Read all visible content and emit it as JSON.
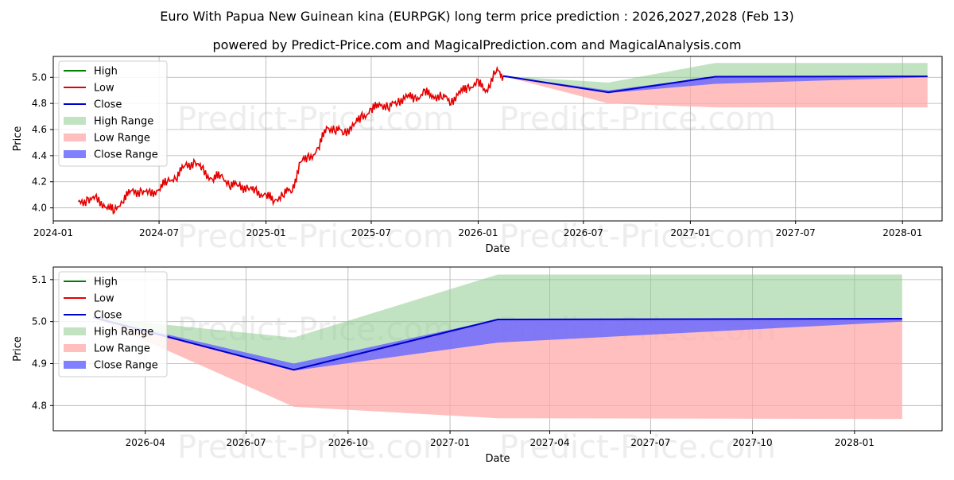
{
  "title": "Euro With Papua New Guinean kina (EURPGK) long term price prediction : 2026,2027,2028 (Feb 13)",
  "subtitle": "powered by Predict-Price.com and MagicalPrediction.com and MagicalAnalysis.com",
  "watermark": "Predict-Price.com",
  "colors": {
    "high": "#008000",
    "low": "#e60000",
    "close": "#0000cc",
    "high_range": "#8fcc8f",
    "low_range": "#ffaaaa",
    "close_range": "#6b6bff",
    "grid": "#b0b0b0"
  },
  "legend_labels": [
    "High",
    "Low",
    "Close",
    "High Range",
    "Low Range",
    "Close Range"
  ],
  "chart_data": [
    {
      "type": "line",
      "name": "history-and-forecast",
      "xlabel": "Date",
      "ylabel": "Price",
      "grid": true,
      "legend": "top-left",
      "xlim": [
        "2024-01-01",
        "2028-03-09"
      ],
      "ylim": [
        3.9,
        5.16
      ],
      "xticks": [
        {
          "date": "2024-01-01",
          "label": "2024-01"
        },
        {
          "date": "2024-07-01",
          "label": "2024-07"
        },
        {
          "date": "2025-01-01",
          "label": "2025-01"
        },
        {
          "date": "2025-07-01",
          "label": "2025-07"
        },
        {
          "date": "2026-01-01",
          "label": "2026-01"
        },
        {
          "date": "2026-07-01",
          "label": "2026-07"
        },
        {
          "date": "2027-01-01",
          "label": "2027-01"
        },
        {
          "date": "2027-07-01",
          "label": "2027-07"
        },
        {
          "date": "2028-01-01",
          "label": "2028-01"
        }
      ],
      "yticks": [
        4.0,
        4.2,
        4.4,
        4.6,
        4.8,
        5.0
      ],
      "history_low": {
        "x": [
          "2024-02-13",
          "2024-03-01",
          "2024-03-15",
          "2024-04-01",
          "2024-04-15",
          "2024-05-01",
          "2024-05-15",
          "2024-06-01",
          "2024-06-15",
          "2024-07-01",
          "2024-07-15",
          "2024-08-01",
          "2024-08-15",
          "2024-09-01",
          "2024-09-15",
          "2024-10-01",
          "2024-10-15",
          "2024-11-01",
          "2024-11-15",
          "2024-12-01",
          "2024-12-15",
          "2025-01-01",
          "2025-01-15",
          "2025-02-01",
          "2025-02-15",
          "2025-03-01",
          "2025-03-15",
          "2025-04-01",
          "2025-04-15",
          "2025-05-01",
          "2025-05-15",
          "2025-06-01",
          "2025-06-15",
          "2025-07-01",
          "2025-07-15",
          "2025-08-01",
          "2025-08-15",
          "2025-09-01",
          "2025-09-15",
          "2025-10-01",
          "2025-10-15",
          "2025-11-01",
          "2025-11-15",
          "2025-12-01",
          "2025-12-15",
          "2026-01-01",
          "2026-01-15",
          "2026-02-01",
          "2026-02-13"
        ],
        "values": [
          4.03,
          4.07,
          4.06,
          4.02,
          3.97,
          4.08,
          4.12,
          4.13,
          4.1,
          4.15,
          4.2,
          4.25,
          4.32,
          4.35,
          4.28,
          4.22,
          4.25,
          4.18,
          4.17,
          4.15,
          4.12,
          4.1,
          4.05,
          4.12,
          4.13,
          4.35,
          4.38,
          4.45,
          4.62,
          4.6,
          4.58,
          4.63,
          4.7,
          4.74,
          4.8,
          4.77,
          4.82,
          4.85,
          4.84,
          4.88,
          4.86,
          4.85,
          4.82,
          4.88,
          4.93,
          4.95,
          4.9,
          5.05,
          5.01
        ]
      },
      "forecast": {
        "x": [
          "2026-02-13",
          "2026-08-13",
          "2027-02-13",
          "2028-02-13"
        ],
        "close": [
          5.01,
          4.885,
          5.005,
          5.007
        ],
        "high_range_top": [
          5.01,
          4.96,
          5.11,
          5.11
        ],
        "low_range_bottom": [
          5.01,
          4.8,
          4.77,
          4.77
        ],
        "close_range_top": [
          5.01,
          4.9,
          5.005,
          5.007
        ],
        "close_range_bottom": [
          5.01,
          4.88,
          4.95,
          5.0
        ]
      }
    },
    {
      "type": "line",
      "name": "forecast-zoom",
      "xlabel": "Date",
      "ylabel": "Price",
      "grid": true,
      "legend": "top-left",
      "xlim": [
        "2026-01-08",
        "2028-03-20"
      ],
      "ylim": [
        4.74,
        5.13
      ],
      "xticks": [
        {
          "date": "2026-04-01",
          "label": "2026-04"
        },
        {
          "date": "2026-07-01",
          "label": "2026-07"
        },
        {
          "date": "2026-10-01",
          "label": "2026-10"
        },
        {
          "date": "2027-01-01",
          "label": "2027-01"
        },
        {
          "date": "2027-04-01",
          "label": "2027-04"
        },
        {
          "date": "2027-07-01",
          "label": "2027-07"
        },
        {
          "date": "2027-10-01",
          "label": "2027-10"
        },
        {
          "date": "2028-01-01",
          "label": "2028-01"
        }
      ],
      "yticks": [
        4.8,
        4.9,
        5.0,
        5.1
      ],
      "forecast": {
        "x": [
          "2026-02-13",
          "2026-08-13",
          "2027-02-13",
          "2028-02-13"
        ],
        "close": [
          5.01,
          4.885,
          5.005,
          5.007
        ],
        "high_range_top": [
          5.01,
          4.962,
          5.112,
          5.112
        ],
        "low_range_bottom": [
          5.01,
          4.797,
          4.77,
          4.768
        ],
        "close_range_top": [
          5.01,
          4.9,
          5.005,
          5.007
        ],
        "close_range_bottom": [
          5.01,
          4.883,
          4.95,
          5.0
        ]
      }
    }
  ]
}
